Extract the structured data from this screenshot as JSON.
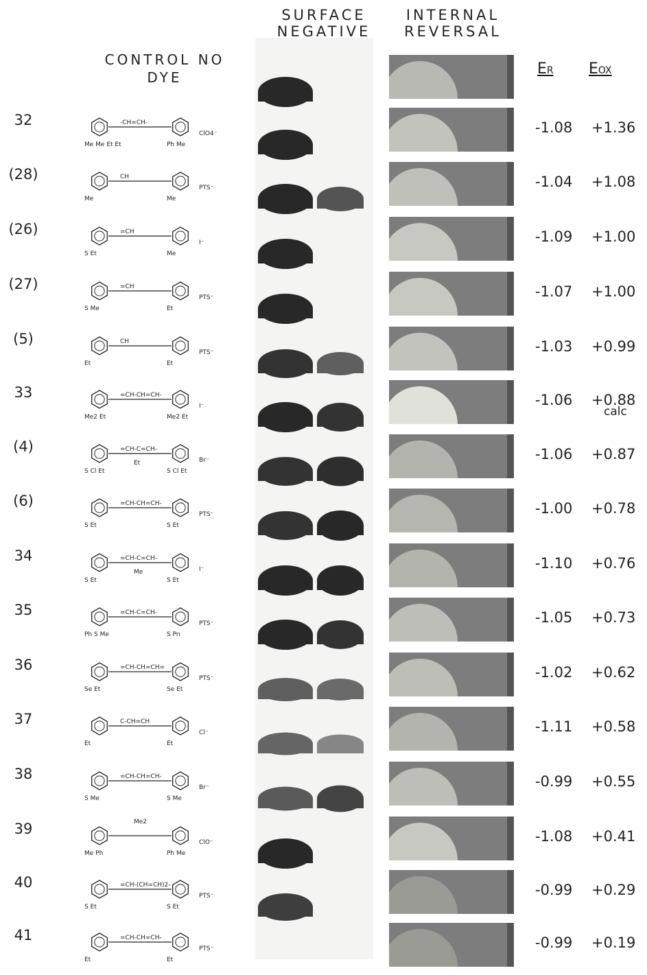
{
  "headers": {
    "surface_negative": "SURFACE NEGATIVE",
    "internal_reversal": "INTERNAL REVERSAL",
    "control": "CONTROL NO DYE",
    "er_label": "E",
    "er_sub": "R",
    "eox_label": "E",
    "eox_sub": "OX"
  },
  "note_calc": "calc",
  "colors": {
    "negative_dark": "#2b2b2b",
    "negative_light": "#6e6e6e",
    "reversal_light": "#d9d9d4",
    "reversal_dark": "#7d7d7d"
  },
  "rows": [
    {
      "id": "control",
      "num": "",
      "er": "",
      "eox": "",
      "structure": {
        "left": "",
        "right": "",
        "counter": ""
      },
      "neg": [
        1
      ],
      "rev": 0.35
    },
    {
      "id": "32",
      "num": "32",
      "er": "-1.08",
      "eox": "+1.36",
      "structure": {
        "left": "Me Me Et Et",
        "bridge": "-CH=CH-",
        "right": "Ph Me",
        "counter": "ClO4⁻"
      },
      "neg": [
        1
      ],
      "rev": 0.45
    },
    {
      "id": "28",
      "num": "(28)",
      "er": "-1.04",
      "eox": "+1.08",
      "structure": {
        "left": "Me",
        "bridge": "CH",
        "right": "Me",
        "counter": "PTS⁻"
      },
      "neg": [
        1,
        0.6
      ],
      "rev": 0.42
    },
    {
      "id": "26",
      "num": "(26)",
      "er": "-1.09",
      "eox": "+1.00",
      "structure": {
        "left": "S Et",
        "bridge": "=CH",
        "right": "Me",
        "counter": "I⁻"
      },
      "neg": [
        1
      ],
      "rev": 0.5
    },
    {
      "id": "27",
      "num": "(27)",
      "er": "-1.07",
      "eox": "+1.00",
      "structure": {
        "left": "S Me",
        "bridge": "=CH",
        "right": "Et",
        "counter": "PTS⁻"
      },
      "neg": [
        1
      ],
      "rev": 0.5
    },
    {
      "id": "5",
      "num": "(5)",
      "er": "-1.03",
      "eox": "+0.99",
      "structure": {
        "left": "Et",
        "bridge": "CH",
        "right": "Et",
        "counter": "PTS⁻"
      },
      "neg": [
        0.9,
        0.5
      ],
      "rev": 0.45
    },
    {
      "id": "33",
      "num": "33",
      "er": "-1.06",
      "eox": "+0.88",
      "structure": {
        "left": "Me2 Et",
        "bridge": "=CH-CH=CH-",
        "right": "Me2 Et",
        "counter": "I⁻"
      },
      "neg": [
        1,
        0.9
      ],
      "rev": 0.75
    },
    {
      "id": "4",
      "num": "(4)",
      "er": "-1.06",
      "eox": "+0.87",
      "structure": {
        "left": "S Cl Et",
        "bridge": "=CH-C=CH-",
        "mid": "Et",
        "right": "S Cl Et",
        "counter": "Br⁻"
      },
      "neg": [
        0.9,
        0.95
      ],
      "rev": 0.3
    },
    {
      "id": "6",
      "num": "(6)",
      "er": "-1.00",
      "eox": "+0.78",
      "structure": {
        "left": "S Et",
        "bridge": "=CH-CH=CH-",
        "right": "S Et",
        "counter": "PTS⁻"
      },
      "neg": [
        0.9,
        1
      ],
      "rev": 0.32
    },
    {
      "id": "34",
      "num": "34",
      "er": "-1.10",
      "eox": "+0.76",
      "structure": {
        "left": "S Et",
        "bridge": "=CH-C=CH-",
        "mid": "Me",
        "right": "S Et",
        "counter": "I⁻"
      },
      "neg": [
        1,
        1
      ],
      "rev": 0.3
    },
    {
      "id": "35",
      "num": "35",
      "er": "-1.05",
      "eox": "+0.73",
      "structure": {
        "left": "Ph S Me",
        "bridge": "=CH-C=CH-",
        "right": "S Pn",
        "counter": "PTS⁻"
      },
      "neg": [
        1,
        0.9
      ],
      "rev": 0.4
    },
    {
      "id": "36",
      "num": "36",
      "er": "-1.02",
      "eox": "+0.62",
      "structure": {
        "left": "Se Et",
        "bridge": "=CH-CH=CH=",
        "right": "Se Et",
        "counter": "PTS⁻"
      },
      "neg": [
        0.5,
        0.4
      ],
      "rev": 0.4
    },
    {
      "id": "37",
      "num": "37",
      "er": "-1.11",
      "eox": "+0.58",
      "structure": {
        "left": "Et",
        "bridge": "C-CH=CH",
        "right": "Et",
        "counter": "Cl⁻"
      },
      "neg": [
        0.45,
        0.15
      ],
      "rev": 0.3
    },
    {
      "id": "38",
      "num": "38",
      "er": "-0.99",
      "eox": "+0.55",
      "structure": {
        "left": "S Me",
        "bridge": "=CH-CH=CH-",
        "right": "S Me",
        "counter": "Br⁻"
      },
      "neg": [
        0.55,
        0.75
      ],
      "rev": 0.4
    },
    {
      "id": "39",
      "num": "39",
      "er": "-1.08",
      "eox": "+0.41",
      "structure": {
        "left": "Me Ph",
        "top": "Me2",
        "right": "Ph Me",
        "counter": "ClO⁻"
      },
      "neg": [
        1
      ],
      "rev": 0.5
    },
    {
      "id": "40",
      "num": "40",
      "er": "-0.99",
      "eox": "+0.29",
      "structure": {
        "left": "S Et",
        "bridge": "=CH-(CH=CH)2-",
        "right": "S Et",
        "counter": "PTS⁻"
      },
      "neg": [
        0.8
      ],
      "rev": 0.05
    },
    {
      "id": "41",
      "num": "41",
      "er": "-0.99",
      "eox": "+0.19",
      "structure": {
        "left": "Et",
        "bridge": "=CH-CH=CH-",
        "right": "Et",
        "counter": "PTS⁻"
      },
      "neg": [
        0
      ],
      "rev": 0.05
    }
  ]
}
